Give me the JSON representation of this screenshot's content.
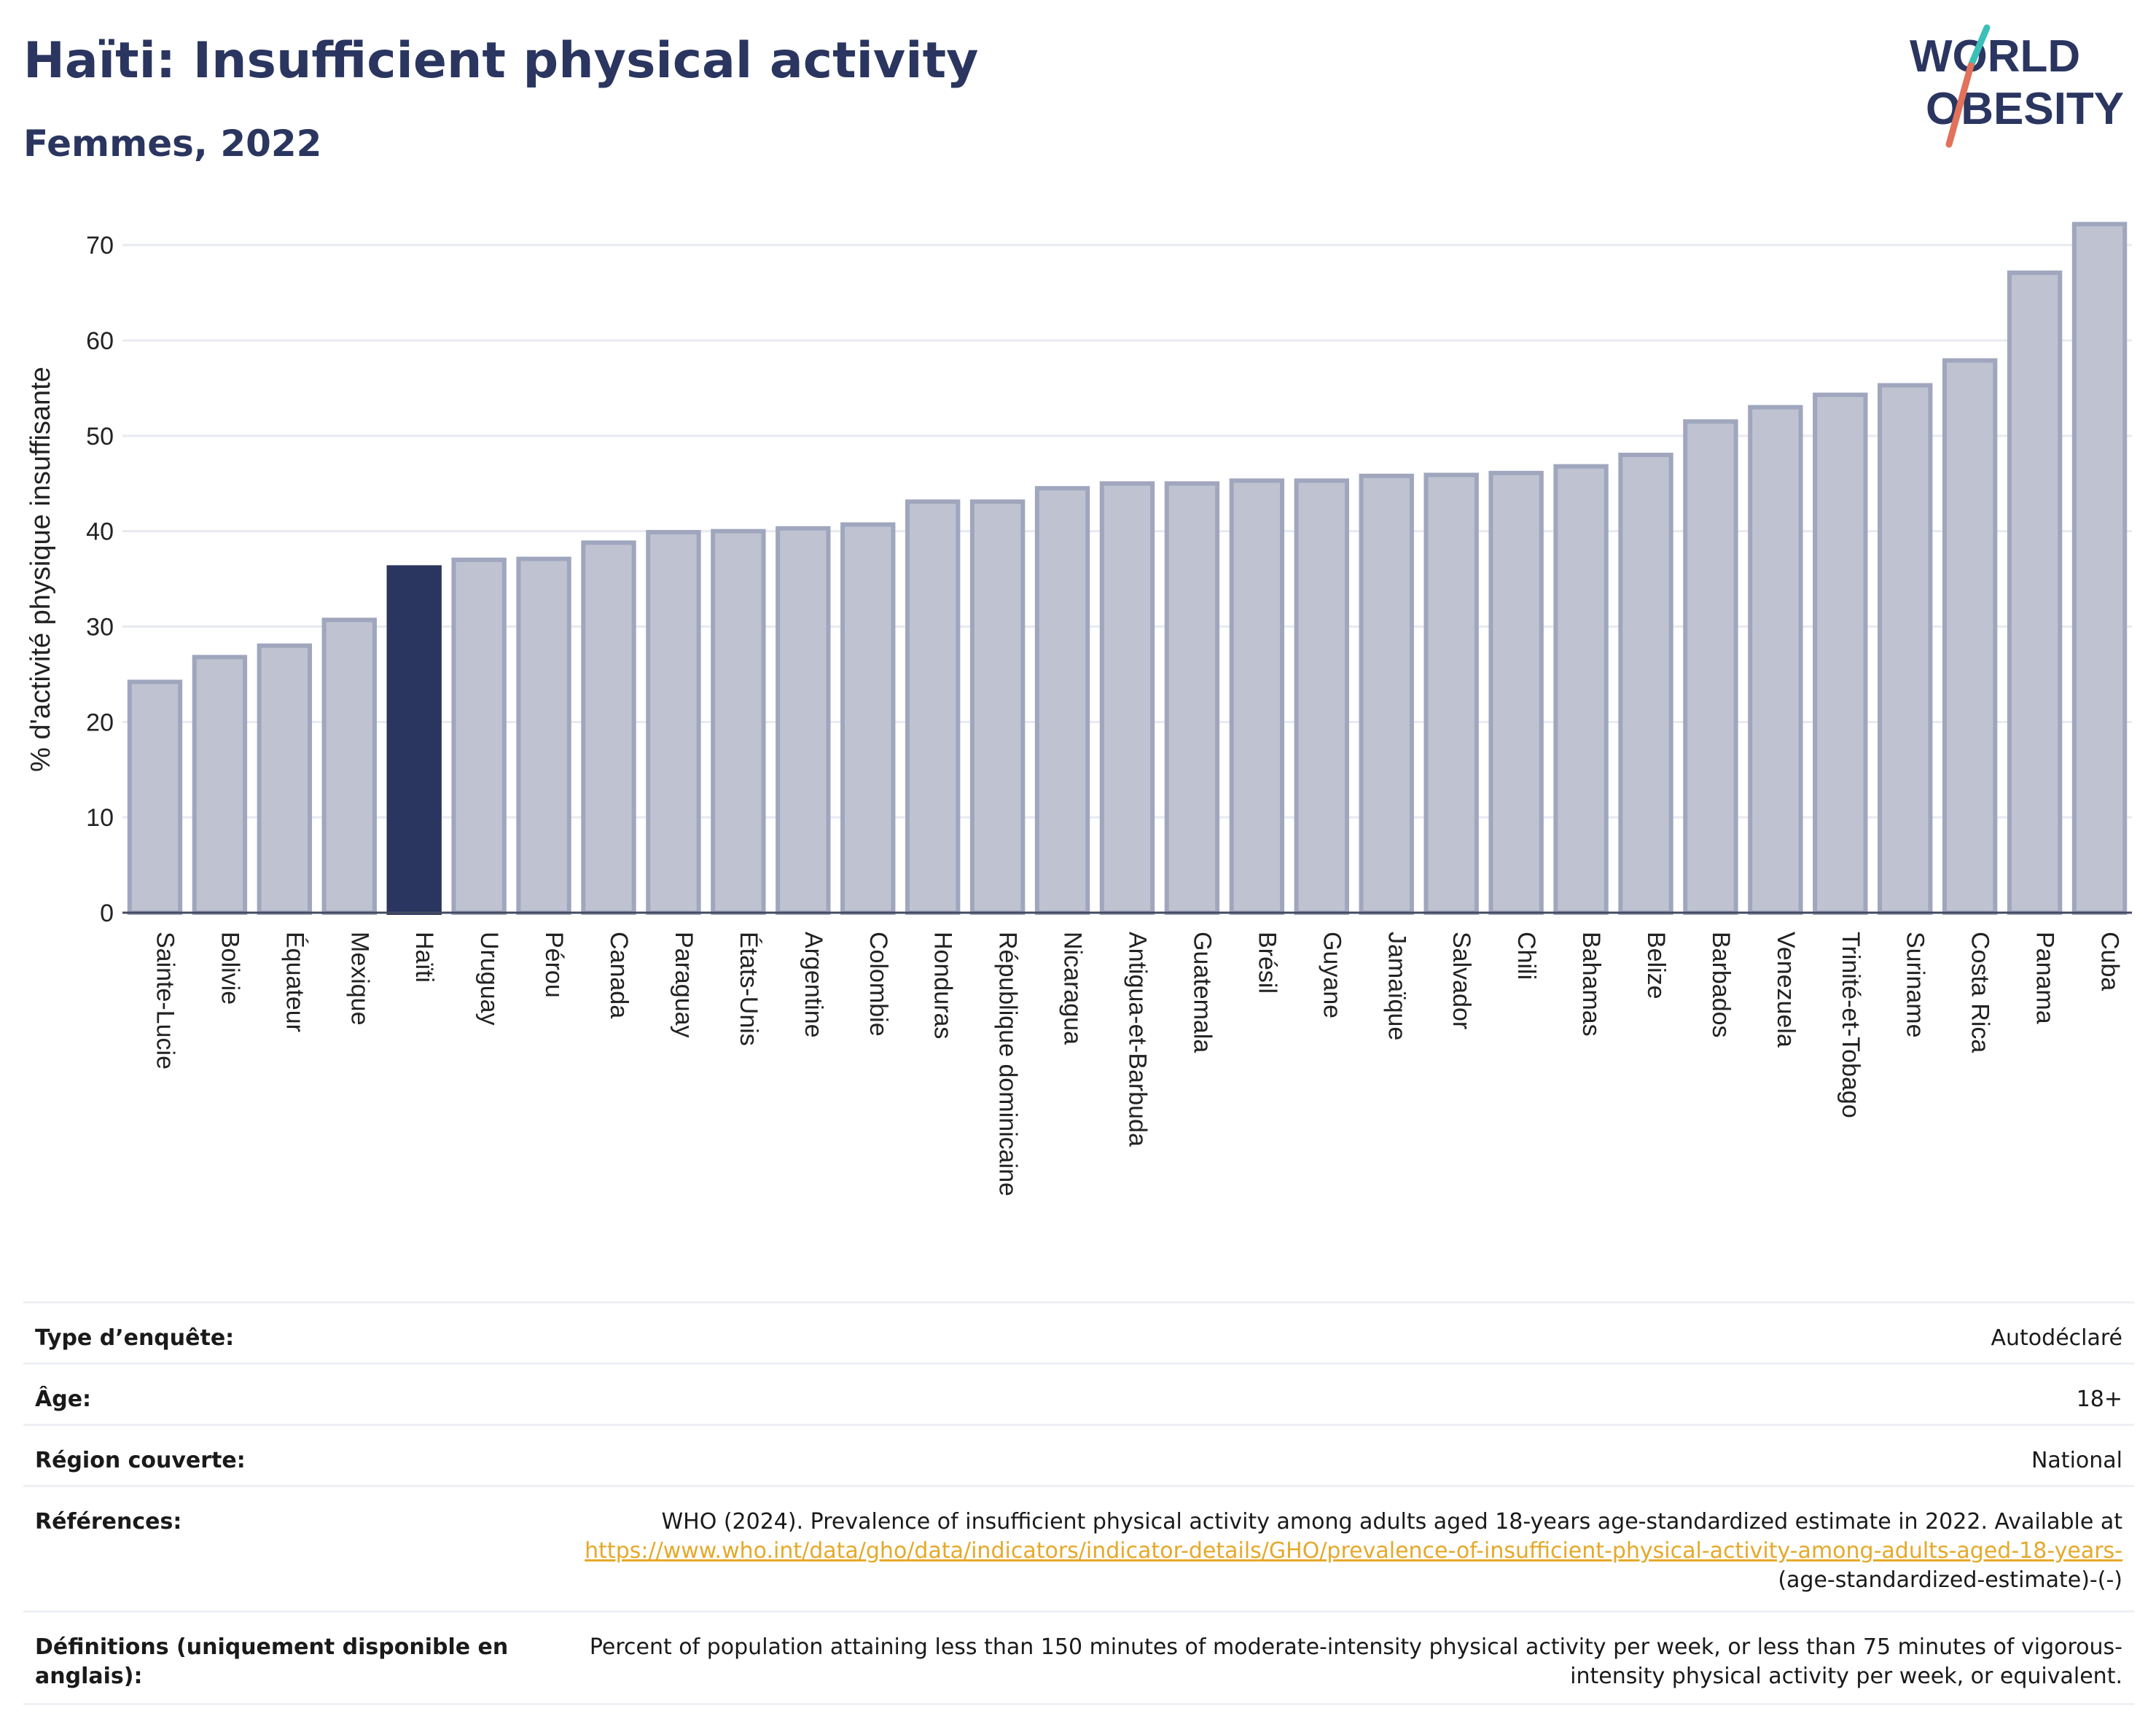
{
  "header": {
    "title": "Haïti: Insufficient physical activity",
    "subtitle": "Femmes, 2022"
  },
  "logo": {
    "line1": "WORLD",
    "line2": "OBESITY",
    "accent_teal": "#3bbfb8",
    "accent_coral": "#e2725b"
  },
  "colors": {
    "bar_default": "#bfc3d1",
    "bar_default_stroke": "#9fa6bd",
    "bar_highlight": "#2a3560",
    "text_dark": "#2a3560",
    "link": "#e5a92a"
  },
  "chart_data": {
    "type": "bar",
    "ylabel": "% d'activité physique insuffisante",
    "ylim": [
      0,
      72
    ],
    "yticks": [
      0,
      10,
      20,
      30,
      40,
      50,
      60,
      70
    ],
    "grid": true,
    "highlight": "Haïti",
    "categories": [
      "Sainte-Lucie",
      "Bolivie",
      "Équateur",
      "Mexique",
      "Haïti",
      "Uruguay",
      "Pérou",
      "Canada",
      "Paraguay",
      "États-Unis",
      "Argentine",
      "Colombie",
      "Honduras",
      "République dominicaine",
      "Nicaragua",
      "Antigua-et-Barbuda",
      "Guatemala",
      "Brésil",
      "Guyane",
      "Jamaïque",
      "Salvador",
      "Chili",
      "Bahamas",
      "Belize",
      "Barbados",
      "Venezuela",
      "Trinité-et-Tobago",
      "Suriname",
      "Costa Rica",
      "Panama",
      "Cuba"
    ],
    "values": [
      24.2,
      26.8,
      28.0,
      30.7,
      36.2,
      37.0,
      37.1,
      38.8,
      39.9,
      40.0,
      40.3,
      40.7,
      43.1,
      43.1,
      44.5,
      45.0,
      45.0,
      45.3,
      45.3,
      45.8,
      45.9,
      46.1,
      46.8,
      48.0,
      51.5,
      53.0,
      54.3,
      55.3,
      57.9,
      67.1,
      72.2
    ]
  },
  "meta": {
    "rows": [
      {
        "key": "Type d’enquête:",
        "value": "Autodéclaré"
      },
      {
        "key": "Âge:",
        "value": "18+"
      },
      {
        "key": "Région couverte:",
        "value": "National"
      }
    ],
    "references": {
      "key": "Références:",
      "text": "WHO (2024). Prevalence of insufficient physical activity among adults aged 18-years age-standardized estimate in 2022. Available at",
      "link": "https://www.who.int/data/gho/data/indicators/indicator-details/GHO/prevalence-of-insufficient-physical-activity-among-adults-aged-18-years-",
      "suffix": "(age-standardized-estimate)-(-)"
    },
    "definitions": {
      "key": "Définitions (uniquement disponible en anglais):",
      "value": "Percent of population attaining less than 150 minutes of moderate-intensity physical activity per week, or less than 75 minutes of vigorous-intensity physical activity per week, or equivalent."
    }
  }
}
